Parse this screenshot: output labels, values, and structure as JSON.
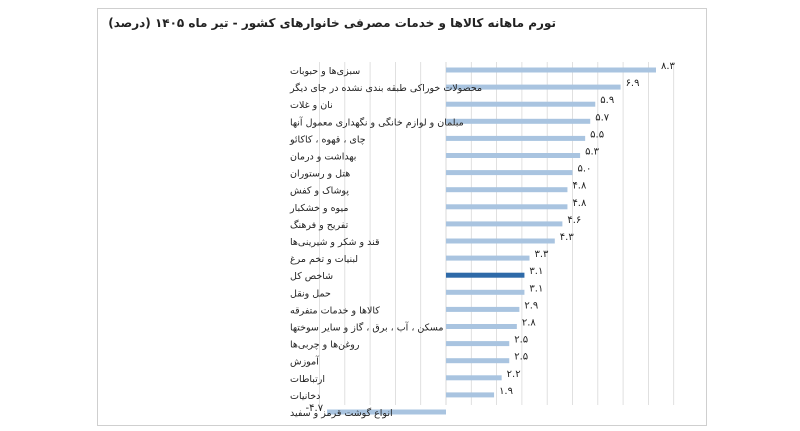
{
  "chart_data": {
    "type": "bar",
    "orientation": "horizontal",
    "title": "تورم ماهانه کالاها و خدمات مصرفی خانوارهای کشور - تیر ماه ۱۴۰۵ (درصد)",
    "categories": [
      "سبزی‌ها و حبوبات",
      "محصولات خوراکی طبقه بندی نشده در جای دیگر",
      "نان و غلات",
      "مبلمان و لوازم خانگی و نگهداری معمول آنها",
      "چای ، قهوه ، کاکائو",
      "بهداشت و درمان",
      "هتل و رستوران",
      "پوشاک و کفش",
      "میوه و خشکبار",
      "تفریح و فرهنگ",
      "قند و شکر و شیرینی‌ها",
      "لبنیات و تخم مرغ",
      "شاخص کل",
      "حمل ونقل",
      "کالاها و خدمات متفرقه",
      "مسکن ، آب ، برق ، گاز و سایر سوختها",
      "روغن‌ها و چربی‌ها",
      "آموزش",
      "ارتباطات",
      "دخانیات",
      "انواع گوشت قرمز و سفید"
    ],
    "values": [
      8.3,
      6.9,
      5.9,
      5.7,
      5.5,
      5.3,
      5.0,
      4.8,
      4.8,
      4.6,
      4.3,
      3.3,
      3.1,
      3.1,
      2.9,
      2.8,
      2.5,
      2.5,
      2.2,
      1.9,
      -4.7
    ],
    "value_labels": [
      "۸.۳",
      "۶.۹",
      "۵.۹",
      "۵.۷",
      "۵.۵",
      "۵.۳",
      "۵.۰",
      "۴.۸",
      "۴.۸",
      "۴.۶",
      "۴.۳",
      "۳.۳",
      "۳.۱",
      "۳.۱",
      "۲.۹",
      "۲.۸",
      "۲.۵",
      "۲.۵",
      "۲.۲",
      "۱.۹",
      "-۴.۷"
    ],
    "highlight_index": 12,
    "xlim": [
      -5,
      9
    ],
    "grid": true,
    "legend": "none",
    "colors": {
      "bar": "#a9c4e0",
      "highlight": "#2e6aa8",
      "grid": "#d8d8d8",
      "label": "#222222"
    }
  }
}
